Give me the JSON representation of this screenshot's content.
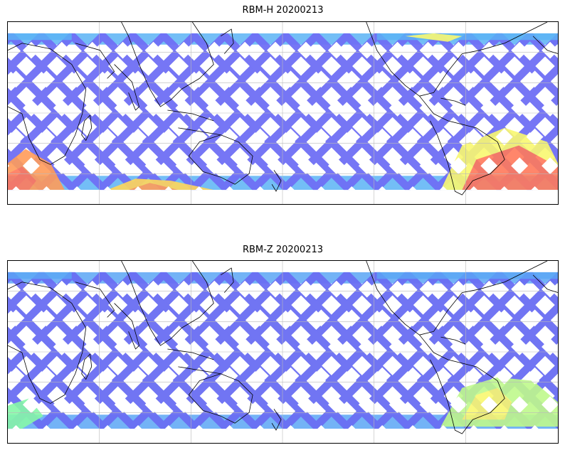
{
  "panels": [
    {
      "title": "RBM-H 20200213",
      "dominant_color": "#6f6ff5",
      "band_color": "#5ab3f5",
      "hot_colors": [
        "#ff7a5c",
        "#ff9c5a",
        "#ffd65a",
        "#f9f871",
        "#bff98c"
      ]
    },
    {
      "title": "RBM-Z 20200213",
      "dominant_color": "#6a6ef3",
      "band_color": "#5aa6f5",
      "hot_colors": [
        "#f9f871",
        "#bff98c",
        "#86f7a8",
        "#55e3f0"
      ]
    }
  ]
}
